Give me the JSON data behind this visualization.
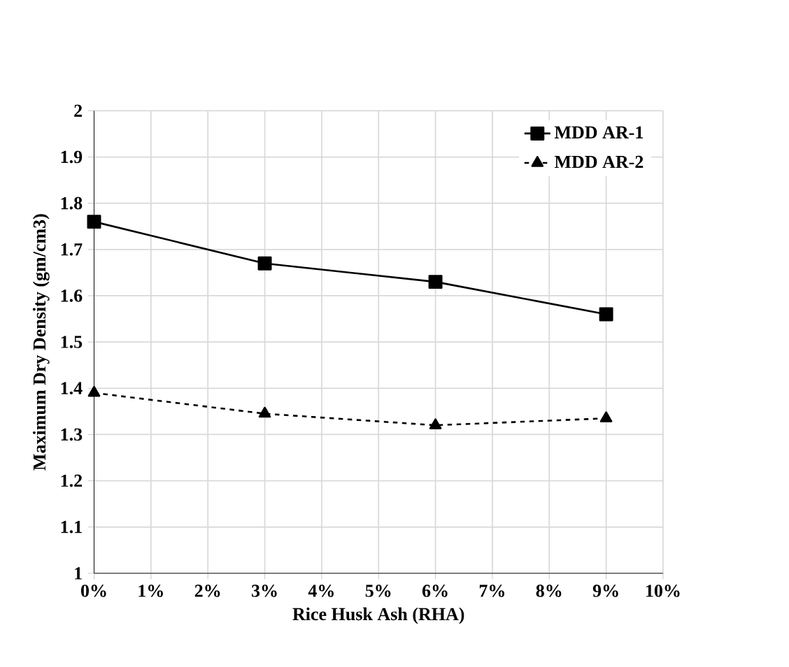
{
  "chart_data": {
    "type": "line",
    "xlabel": "Rice Husk Ash (RHA)",
    "ylabel": "Maximum Dry Density (gm/cm3)",
    "x": [
      0,
      3,
      6,
      9
    ],
    "series": [
      {
        "name": "MDD   AR-1",
        "color": "#000000",
        "values": [
          1.76,
          1.67,
          1.63,
          1.56
        ],
        "marker": "square",
        "line_style": "solid"
      },
      {
        "name": "MDD   AR-2",
        "color": "#000000",
        "values": [
          1.39,
          1.345,
          1.32,
          1.335
        ],
        "marker": "triangle",
        "line_style": "dashed"
      }
    ],
    "xlim": [
      0,
      10
    ],
    "xticks": [
      {
        "value": 0,
        "label": "0%"
      },
      {
        "value": 1,
        "label": "1%"
      },
      {
        "value": 2,
        "label": "2%"
      },
      {
        "value": 3,
        "label": "3%"
      },
      {
        "value": 4,
        "label": "4%"
      },
      {
        "value": 5,
        "label": "5%"
      },
      {
        "value": 6,
        "label": "6%"
      },
      {
        "value": 7,
        "label": "7%"
      },
      {
        "value": 8,
        "label": "8%"
      },
      {
        "value": 9,
        "label": "9%"
      },
      {
        "value": 10,
        "label": "10%"
      }
    ],
    "ylim": [
      1,
      2
    ],
    "yticks": [
      1,
      1.1,
      1.2,
      1.3,
      1.4,
      1.5,
      1.6,
      1.7,
      1.8,
      1.9,
      2
    ],
    "grid": true,
    "legend": "top right"
  }
}
